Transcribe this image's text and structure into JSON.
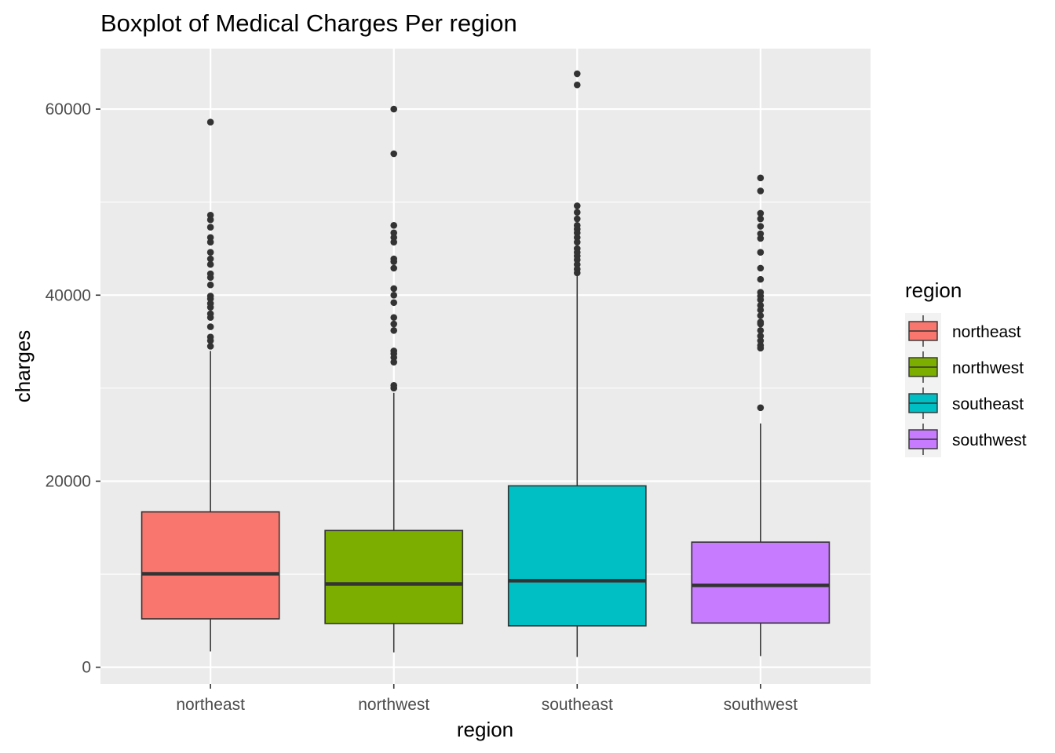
{
  "chart_data": {
    "type": "boxplot",
    "title": "Boxplot of Medical Charges Per region",
    "xlabel": "region",
    "ylabel": "charges",
    "categories": [
      "northeast",
      "northwest",
      "southeast",
      "southwest"
    ],
    "ylim": [
      -1800,
      66500
    ],
    "yticks": [
      0,
      20000,
      40000,
      60000
    ],
    "ytick_labels": [
      "0",
      "20000",
      "40000",
      "60000"
    ],
    "grid": true,
    "legend": {
      "title": "region",
      "position": "right",
      "labels": [
        "northeast",
        "northwest",
        "southeast",
        "southwest"
      ]
    },
    "colors": {
      "northeast": "#F8766D",
      "northwest": "#7CAE00",
      "southeast": "#00BFC4",
      "southwest": "#C77CFF",
      "panel": "#EBEBEB",
      "grid": "#FFFFFF",
      "outline": "#333333"
    },
    "boxes": [
      {
        "category": "northeast",
        "whisker_low": 1700,
        "q1": 5200,
        "median": 10050,
        "q3": 16700,
        "whisker_high": 34000,
        "outliers": [
          58600,
          48600,
          48100,
          47300,
          46200,
          45700,
          44600,
          43900,
          43300,
          42300,
          41900,
          41100,
          39900,
          39600,
          39100,
          38700,
          38000,
          37600,
          36600,
          35500,
          35100,
          34500
        ]
      },
      {
        "category": "northwest",
        "whisker_low": 1600,
        "q1": 4700,
        "median": 8950,
        "q3": 14700,
        "whisker_high": 29500,
        "outliers": [
          60000,
          55200,
          47500,
          46700,
          46200,
          45700,
          43900,
          43600,
          42900,
          40700,
          40000,
          39200,
          37600,
          36900,
          36200,
          34000,
          33700,
          33300,
          32800,
          30300,
          30000
        ]
      },
      {
        "category": "southeast",
        "whisker_low": 1100,
        "q1": 4450,
        "median": 9300,
        "q3": 19500,
        "whisker_high": 42200,
        "outliers": [
          63800,
          62600,
          49600,
          48900,
          48200,
          47500,
          47100,
          46700,
          46200,
          45700,
          45000,
          44600,
          44200,
          43800,
          43300,
          42800,
          42400
        ]
      },
      {
        "category": "southwest",
        "whisker_low": 1200,
        "q1": 4750,
        "median": 8800,
        "q3": 13450,
        "whisker_high": 26200,
        "outliers": [
          52600,
          51200,
          48800,
          48200,
          47400,
          46600,
          46100,
          44600,
          42900,
          41700,
          40300,
          39900,
          39500,
          38900,
          38400,
          37800,
          37100,
          36900,
          36200,
          35600,
          35100,
          34600,
          34300,
          27900
        ]
      }
    ]
  }
}
